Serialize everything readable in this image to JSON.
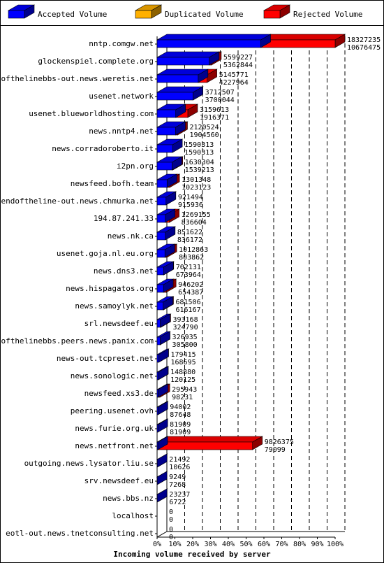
{
  "chart_data": {
    "type": "bar",
    "orientation": "horizontal",
    "stacked": false,
    "xlabel": "Incoming volume received by server",
    "xlim": [
      0,
      100
    ],
    "x_ticks": [
      "0%",
      "10%",
      "20%",
      "30%",
      "40%",
      "50%",
      "60%",
      "70%",
      "80%",
      "90%",
      "100%"
    ],
    "grid": true,
    "legend_placement": "top",
    "legend": [
      {
        "key": "accepted",
        "label": "Accepted Volume",
        "color": "#0000ff"
      },
      {
        "key": "duplicated",
        "label": "Duplicated Volume",
        "color": "#ffb000"
      },
      {
        "key": "rejected",
        "label": "Rejected Volume",
        "color": "#ff0000"
      }
    ],
    "rows": [
      {
        "server": "nntp.comgw.net",
        "total": 18327235,
        "accepted": 10676475
      },
      {
        "server": "glockenspiel.complete.org",
        "total": 5599227,
        "accepted": 5362844
      },
      {
        "server": "endofthelinebbs-out.news.weretis.net",
        "total": 5145771,
        "accepted": 4227964
      },
      {
        "server": "usenet.network",
        "total": 3712507,
        "accepted": 3700044
      },
      {
        "server": "usenet.blueworldhosting.com",
        "total": 3159613,
        "accepted": 1916371
      },
      {
        "server": "news.nntp4.net",
        "total": 2120524,
        "accepted": 1904560
      },
      {
        "server": "news.corradoroberto.it",
        "total": 1590313,
        "accepted": 1590313
      },
      {
        "server": "i2pn.org",
        "total": 1630304,
        "accepted": 1539213
      },
      {
        "server": "newsfeed.bofh.team",
        "total": 1301348,
        "accepted": 1023123
      },
      {
        "server": "endoftheline-out.news.chmurka.net",
        "total": 921494,
        "accepted": 915936
      },
      {
        "server": "194.87.241.33",
        "total": 1269155,
        "accepted": 836604
      },
      {
        "server": "news.nk.ca",
        "total": 851622,
        "accepted": 836172
      },
      {
        "server": "usenet.goja.nl.eu.org",
        "total": 1012863,
        "accepted": 803862
      },
      {
        "server": "news.dns3.net",
        "total": 702131,
        "accepted": 673964
      },
      {
        "server": "news.hispagatos.org",
        "total": 946202,
        "accepted": 654387
      },
      {
        "server": "news.samoylyk.net",
        "total": 681506,
        "accepted": 616167
      },
      {
        "server": "srl.newsdeef.eu",
        "total": 393168,
        "accepted": 324790
      },
      {
        "server": "endofthelinebbs.peers.news.panix.com",
        "total": 326935,
        "accepted": 305800
      },
      {
        "server": "news-out.tcpreset.net",
        "total": 179415,
        "accepted": 168695
      },
      {
        "server": "news.sonologic.net",
        "total": 148880,
        "accepted": 120125
      },
      {
        "server": "newsfeed.xs3.de",
        "total": 295943,
        "accepted": 98231
      },
      {
        "server": "peering.usenet.ovh",
        "total": 94002,
        "accepted": 87648
      },
      {
        "server": "news.furie.org.uk",
        "total": 81909,
        "accepted": 81909
      },
      {
        "server": "news.netfront.net",
        "total": 9826375,
        "accepted": 79099
      },
      {
        "server": "outgoing.news.lysator.liu.se",
        "total": 21492,
        "accepted": 10626
      },
      {
        "server": "srv.newsdeef.eu",
        "total": 9249,
        "accepted": 7268
      },
      {
        "server": "news.bbs.nz",
        "total": 23237,
        "accepted": 6722,
        "duplicated": 16515
      },
      {
        "server": "localhost",
        "total": 0,
        "accepted": 0
      },
      {
        "server": "eotl-out.news.tnetconsulting.net",
        "total": 0,
        "accepted": 0
      }
    ]
  }
}
